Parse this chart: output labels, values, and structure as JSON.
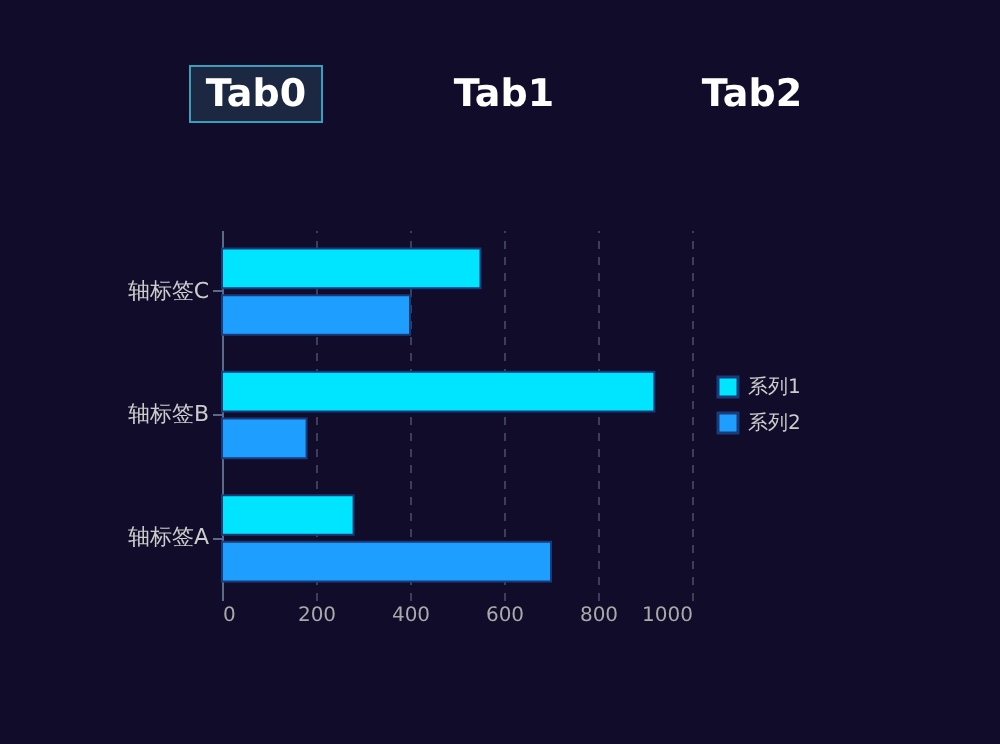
{
  "chart_data": {
    "type": "bar",
    "orientation": "horizontal",
    "categories": [
      "轴标签C",
      "轴标签B",
      "轴标签A"
    ],
    "series": [
      {
        "name": "系列1",
        "color": "#00e5ff",
        "values": [
          550,
          920,
          280
        ]
      },
      {
        "name": "系列2",
        "color": "#1e9fff",
        "values": [
          400,
          180,
          700
        ]
      }
    ],
    "xlim": [
      0,
      1000
    ],
    "xticks": [
      0,
      200,
      400,
      600,
      800,
      1000
    ],
    "grid": "x",
    "legend": "right",
    "annotations": [
      "Tab0",
      "Tab1",
      "Tab2"
    ]
  }
}
